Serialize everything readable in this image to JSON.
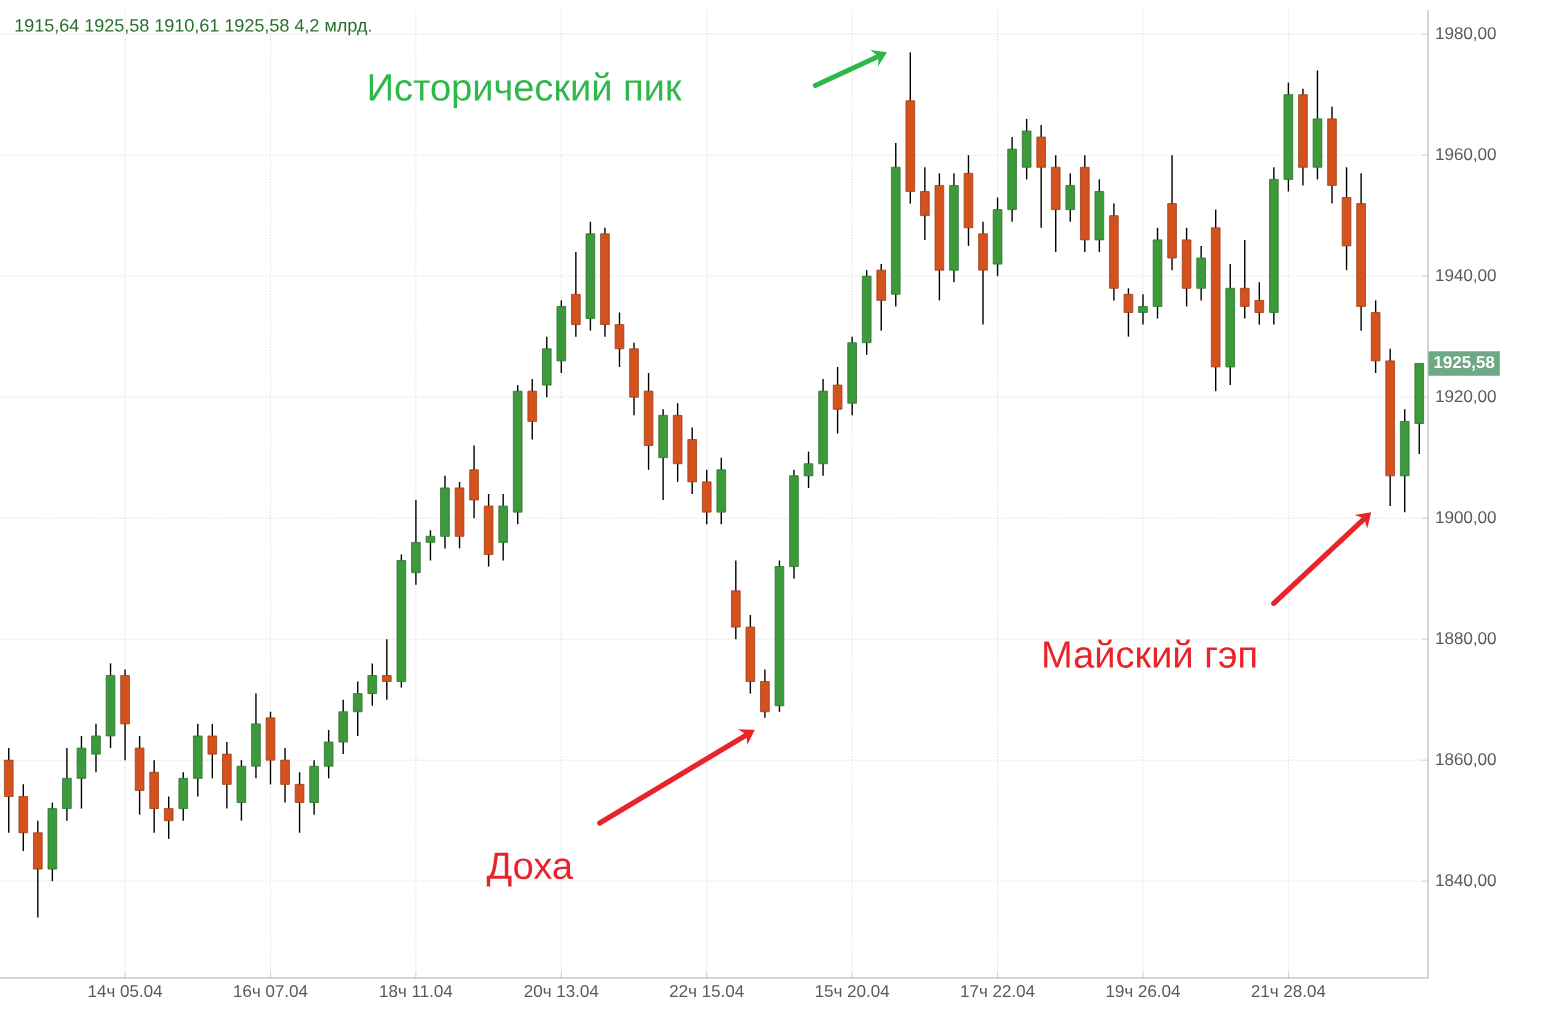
{
  "chart_data": {
    "type": "candlestick",
    "subtitle": "1915,64 1925,58 1910,61 1925,58 4,2 млрд.",
    "categories": [
      null,
      null,
      null,
      null,
      null,
      null,
      null,
      null,
      "14ч 05.04",
      null,
      null,
      null,
      null,
      null,
      null,
      null,
      null,
      null,
      "16ч 07.04",
      null,
      null,
      null,
      null,
      null,
      null,
      null,
      null,
      null,
      "18ч 11.04",
      null,
      null,
      null,
      null,
      null,
      null,
      null,
      null,
      null,
      "20ч 13.04",
      null,
      null,
      null,
      null,
      null,
      null,
      null,
      null,
      null,
      "22ч 15.04",
      null,
      null,
      null,
      null,
      null,
      null,
      null,
      null,
      null,
      "15ч 20.04",
      null,
      null,
      null,
      null,
      null,
      null,
      null,
      null,
      null,
      "17ч 22.04",
      null,
      null,
      null,
      null,
      null,
      null,
      null,
      null,
      null,
      "19ч 26.04",
      null,
      null,
      null,
      null,
      null,
      null,
      null,
      null,
      null,
      "21ч 28.04",
      null,
      null,
      null,
      null,
      null,
      null,
      null,
      null,
      null
    ],
    "ohlc": [
      [
        1860,
        1862,
        1848,
        1854
      ],
      [
        1854,
        1856,
        1845,
        1848
      ],
      [
        1848,
        1850,
        1834,
        1842
      ],
      [
        1842,
        1853,
        1840,
        1852
      ],
      [
        1852,
        1862,
        1850,
        1857
      ],
      [
        1857,
        1864,
        1852,
        1862
      ],
      [
        1861,
        1866,
        1858,
        1864
      ],
      [
        1864,
        1876,
        1862,
        1874
      ],
      [
        1874,
        1875,
        1860,
        1866
      ],
      [
        1862,
        1864,
        1851,
        1855
      ],
      [
        1858,
        1860,
        1848,
        1852
      ],
      [
        1852,
        1854,
        1847,
        1850
      ],
      [
        1852,
        1858,
        1850,
        1857
      ],
      [
        1857,
        1866,
        1854,
        1864
      ],
      [
        1864,
        1866,
        1857,
        1861
      ],
      [
        1861,
        1863,
        1852,
        1856
      ],
      [
        1853,
        1860,
        1850,
        1859
      ],
      [
        1859,
        1871,
        1857,
        1866
      ],
      [
        1867,
        1868,
        1856,
        1860
      ],
      [
        1860,
        1862,
        1853,
        1856
      ],
      [
        1856,
        1858,
        1848,
        1853
      ],
      [
        1853,
        1860,
        1851,
        1859
      ],
      [
        1859,
        1865,
        1857,
        1863
      ],
      [
        1863,
        1870,
        1861,
        1868
      ],
      [
        1868,
        1873,
        1864,
        1871
      ],
      [
        1871,
        1876,
        1869,
        1874
      ],
      [
        1874,
        1880,
        1870,
        1873
      ],
      [
        1873,
        1894,
        1872,
        1893
      ],
      [
        1891,
        1903,
        1889,
        1896
      ],
      [
        1896,
        1898,
        1893,
        1897
      ],
      [
        1897,
        1907,
        1895,
        1905
      ],
      [
        1905,
        1906,
        1895,
        1897
      ],
      [
        1908,
        1912,
        1900,
        1903
      ],
      [
        1902,
        1904,
        1892,
        1894
      ],
      [
        1896,
        1904,
        1893,
        1902
      ],
      [
        1901,
        1922,
        1899,
        1921
      ],
      [
        1921,
        1923,
        1913,
        1916
      ],
      [
        1922,
        1930,
        1920,
        1928
      ],
      [
        1926,
        1936,
        1924,
        1935
      ],
      [
        1937,
        1944,
        1930,
        1932
      ],
      [
        1933,
        1949,
        1931,
        1947
      ],
      [
        1947,
        1948,
        1930,
        1932
      ],
      [
        1932,
        1934,
        1925,
        1928
      ],
      [
        1928,
        1929,
        1917,
        1920
      ],
      [
        1921,
        1924,
        1908,
        1912
      ],
      [
        1910,
        1918,
        1903,
        1917
      ],
      [
        1917,
        1919,
        1906,
        1909
      ],
      [
        1913,
        1915,
        1904,
        1906
      ],
      [
        1906,
        1908,
        1899,
        1901
      ],
      [
        1901,
        1910,
        1899,
        1908
      ],
      [
        1888,
        1893,
        1880,
        1882
      ],
      [
        1882,
        1884,
        1871,
        1873
      ],
      [
        1873,
        1875,
        1867,
        1868
      ],
      [
        1869,
        1893,
        1868,
        1892
      ],
      [
        1892,
        1908,
        1890,
        1907
      ],
      [
        1907,
        1911,
        1905,
        1909
      ],
      [
        1909,
        1923,
        1907,
        1921
      ],
      [
        1922,
        1925,
        1914,
        1918
      ],
      [
        1919,
        1930,
        1917,
        1929
      ],
      [
        1929,
        1941,
        1927,
        1940
      ],
      [
        1941,
        1942,
        1931,
        1936
      ],
      [
        1937,
        1962,
        1935,
        1958
      ],
      [
        1969,
        1977,
        1952,
        1954
      ],
      [
        1954,
        1958,
        1946,
        1950
      ],
      [
        1955,
        1957,
        1936,
        1941
      ],
      [
        1941,
        1957,
        1939,
        1955
      ],
      [
        1957,
        1960,
        1945,
        1948
      ],
      [
        1947,
        1949,
        1932,
        1941
      ],
      [
        1942,
        1953,
        1940,
        1951
      ],
      [
        1951,
        1963,
        1949,
        1961
      ],
      [
        1958,
        1966,
        1956,
        1964
      ],
      [
        1963,
        1965,
        1948,
        1958
      ],
      [
        1958,
        1960,
        1944,
        1951
      ],
      [
        1951,
        1957,
        1949,
        1955
      ],
      [
        1958,
        1960,
        1944,
        1946
      ],
      [
        1946,
        1956,
        1944,
        1954
      ],
      [
        1950,
        1952,
        1936,
        1938
      ],
      [
        1937,
        1938,
        1930,
        1934
      ],
      [
        1934,
        1937,
        1932,
        1935
      ],
      [
        1935,
        1948,
        1933,
        1946
      ],
      [
        1952,
        1960,
        1941,
        1943
      ],
      [
        1946,
        1948,
        1935,
        1938
      ],
      [
        1938,
        1945,
        1936,
        1943
      ],
      [
        1948,
        1951,
        1921,
        1925
      ],
      [
        1925,
        1942,
        1922,
        1938
      ],
      [
        1938,
        1946,
        1933,
        1935
      ],
      [
        1936,
        1939,
        1932,
        1934
      ],
      [
        1934,
        1958,
        1932,
        1956
      ],
      [
        1956,
        1972,
        1954,
        1970
      ],
      [
        1970,
        1971,
        1955,
        1958
      ],
      [
        1958,
        1974,
        1956,
        1966
      ],
      [
        1966,
        1968,
        1952,
        1955
      ],
      [
        1953,
        1958,
        1941,
        1945
      ],
      [
        1952,
        1957,
        1931,
        1935
      ],
      [
        1934,
        1936,
        1924,
        1926
      ],
      [
        1926,
        1928,
        1902,
        1907
      ],
      [
        1907,
        1918,
        1901,
        1916
      ],
      [
        1915.64,
        1925.58,
        1910.61,
        1925.58
      ]
    ],
    "colors": [
      "#d4521e",
      "#d4521e",
      "#d4521e",
      "#3c9a3c",
      "#3c9a3c",
      "#3c9a3c",
      "#3c9a3c",
      "#3c9a3c",
      "#d4521e",
      "#d4521e",
      "#d4521e",
      "#d4521e",
      "#3c9a3c",
      "#3c9a3c",
      "#d4521e",
      "#d4521e",
      "#3c9a3c",
      "#3c9a3c",
      "#d4521e",
      "#d4521e",
      "#d4521e",
      "#3c9a3c",
      "#3c9a3c",
      "#3c9a3c",
      "#3c9a3c",
      "#3c9a3c",
      "#d4521e",
      "#3c9a3c",
      "#3c9a3c",
      "#3c9a3c",
      "#3c9a3c",
      "#d4521e",
      "#d4521e",
      "#d4521e",
      "#3c9a3c",
      "#3c9a3c",
      "#d4521e",
      "#3c9a3c",
      "#3c9a3c",
      "#d4521e",
      "#3c9a3c",
      "#d4521e",
      "#d4521e",
      "#d4521e",
      "#d4521e",
      "#3c9a3c",
      "#d4521e",
      "#d4521e",
      "#d4521e",
      "#3c9a3c",
      "#d4521e",
      "#d4521e",
      "#d4521e",
      "#3c9a3c",
      "#3c9a3c",
      "#3c9a3c",
      "#3c9a3c",
      "#d4521e",
      "#3c9a3c",
      "#3c9a3c",
      "#d4521e",
      "#3c9a3c",
      "#d4521e",
      "#d4521e",
      "#d4521e",
      "#3c9a3c",
      "#d4521e",
      "#d4521e",
      "#3c9a3c",
      "#3c9a3c",
      "#3c9a3c",
      "#d4521e",
      "#d4521e",
      "#3c9a3c",
      "#d4521e",
      "#3c9a3c",
      "#d4521e",
      "#d4521e",
      "#3c9a3c",
      "#3c9a3c",
      "#d4521e",
      "#d4521e",
      "#3c9a3c",
      "#d4521e",
      "#3c9a3c",
      "#d4521e",
      "#d4521e",
      "#3c9a3c",
      "#3c9a3c",
      "#d4521e",
      "#3c9a3c",
      "#d4521e",
      "#d4521e",
      "#d4521e",
      "#d4521e",
      "#d4521e",
      "#3c9a3c",
      "#3c9a3c"
    ],
    "ylim": [
      1824,
      1984
    ],
    "yticks": [
      {
        "value": 1840,
        "label": "1840,00"
      },
      {
        "value": 1860,
        "label": "1860,00"
      },
      {
        "value": 1880,
        "label": "1880,00"
      },
      {
        "value": 1900,
        "label": "1900,00"
      },
      {
        "value": 1920,
        "label": "1920,00"
      },
      {
        "value": 1940,
        "label": "1940,00"
      },
      {
        "value": 1960,
        "label": "1960,00"
      },
      {
        "value": 1980,
        "label": "1980,00"
      }
    ],
    "grid": true,
    "annotations": [
      "Исторический пик",
      "Доха",
      "Майский гэп",
      {
        "text": "1925,58",
        "y": 1925.58
      }
    ]
  }
}
